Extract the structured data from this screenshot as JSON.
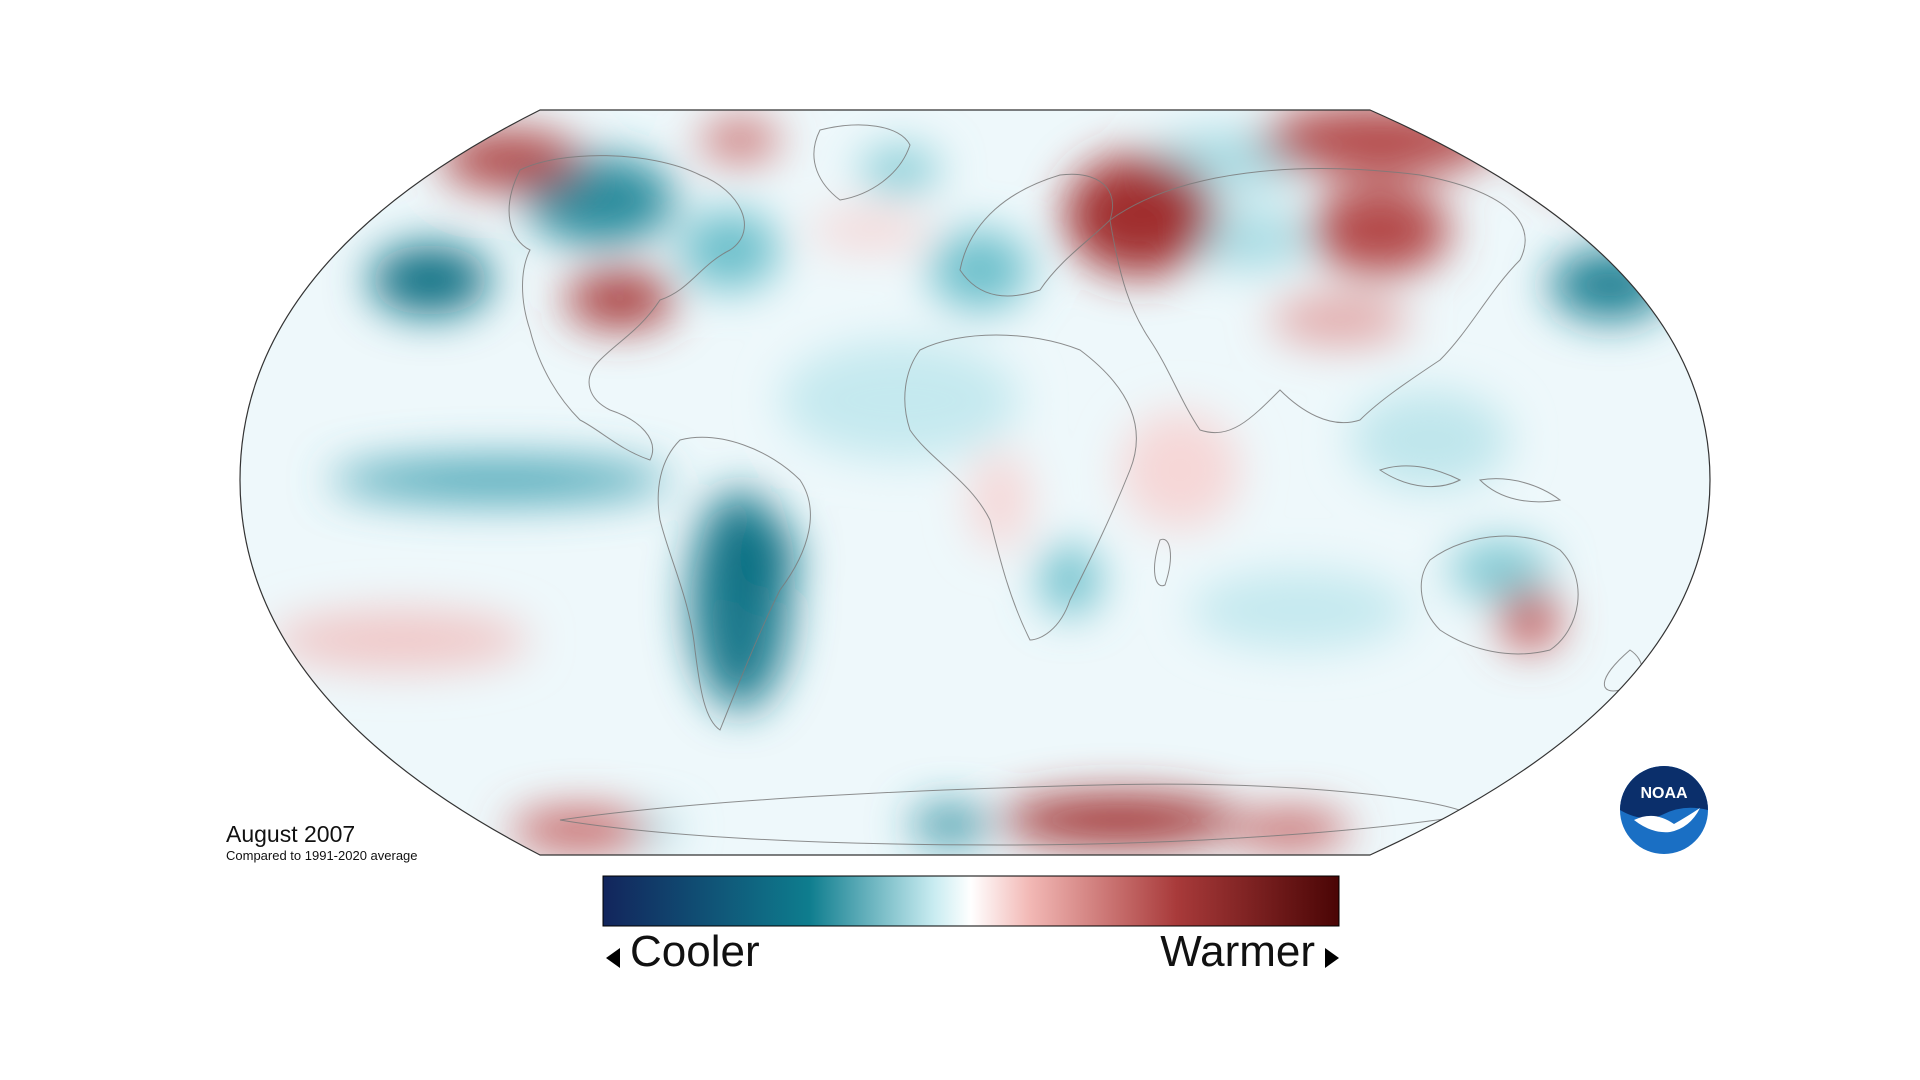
{
  "map": {
    "title": "August 2007",
    "subtitle": "Compared to 1991-2020 average",
    "legend": {
      "low_label": "Cooler",
      "high_label": "Warmer",
      "colors": [
        "#12255c",
        "#0e7d8e",
        "#c9ecf1",
        "#ffffff",
        "#f2b8b5",
        "#a83a3a",
        "#4a0505"
      ]
    },
    "logo": {
      "text": "NOAA",
      "icon": "noaa-logo-icon",
      "colors": {
        "outer": "#1a6fc4",
        "top": "#0b2f6b",
        "bird": "#ffffff"
      }
    },
    "anomaly_colors": {
      "cool": "#1a7f92",
      "warm": "#a93a3a",
      "neutral": "#eaf7fa"
    }
  }
}
